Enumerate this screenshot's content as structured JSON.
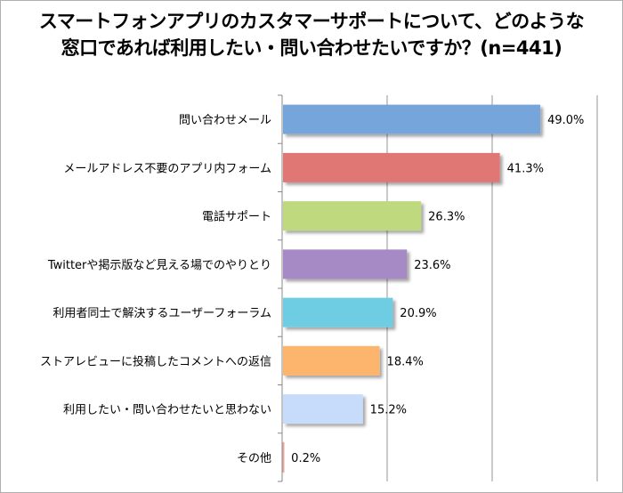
{
  "chart_data": {
    "type": "bar",
    "orientation": "horizontal",
    "title": [
      "スマートフォンアプリのカスタマーサポートについて、どのような",
      "窓口であれば利用したい・問い合わせたいですか？(n=441)"
    ],
    "categories": [
      "問い合わせメール",
      "メールアドレス不要のアプリ内フォーム",
      "電話サポート",
      "Twitterや掲示版など見える場でのやりとり",
      "利用者同士で解決するユーザーフォーラム",
      "ストアレビューに投稿したコメントへの返信",
      "利用したい・問い合わせたいと思わない",
      "その他"
    ],
    "values": [
      49.0,
      41.3,
      26.3,
      23.6,
      20.9,
      18.4,
      15.2,
      0.2
    ],
    "value_labels": [
      "49.0%",
      "41.3%",
      "26.3%",
      "23.6%",
      "20.9%",
      "18.4%",
      "15.2%",
      "0.2%"
    ],
    "colors": [
      "#76a5db",
      "#e07775",
      "#bfd97f",
      "#a68ac6",
      "#6ecde2",
      "#fdb56e",
      "#c6dcfa",
      "#e8a9a0"
    ],
    "xlim": [
      0,
      60
    ],
    "gridlines": [
      20,
      40,
      60
    ],
    "grid": true,
    "legend": "none"
  }
}
